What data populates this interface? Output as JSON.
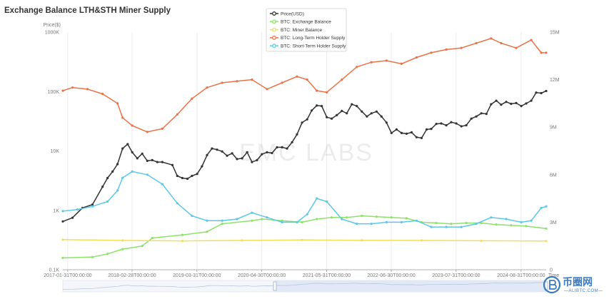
{
  "chart_data": {
    "type": "line",
    "title": "Exchange Balance LTH&STH Miner Supply",
    "left_axis_label": "Price($)",
    "right_axis_label": "",
    "left_axis": {
      "scale": "log",
      "range": [
        100,
        1000000
      ],
      "ticks": [
        "0.1K",
        "1K",
        "10K",
        "100K",
        "1000K"
      ]
    },
    "right_axis": {
      "scale": "linear",
      "range": [
        0,
        15000000
      ],
      "ticks": [
        "0",
        "3M",
        "6M",
        "9M",
        "12M",
        "15M"
      ]
    },
    "x_axis": {
      "range": [
        "2017-01-01",
        "2025-01-31"
      ],
      "tick_labels": [
        "2017-01-31T00:00:00",
        "2018-02-28T00:00:00",
        "2019-03-31T00:00:00",
        "2020-04-30T00:00:00",
        "2021-05-31T00:00:00",
        "2022-06-30T00:00:00",
        "2023-07-31T00:00:00",
        "2024-08-31T00:00:00"
      ],
      "end_label": "Time"
    },
    "grid": "vertical",
    "legend_position": "top-center",
    "watermark": "EMC LABS",
    "series": [
      {
        "name": "Price(USD)",
        "axis": "left",
        "color": "#333333",
        "points": [
          [
            "2017-01-01",
            650
          ],
          [
            "2017-03-01",
            750
          ],
          [
            "2017-05-01",
            1100
          ],
          [
            "2017-07-01",
            1250
          ],
          [
            "2017-09-01",
            2500
          ],
          [
            "2017-10-01",
            3500
          ],
          [
            "2017-11-01",
            4500
          ],
          [
            "2017-12-01",
            6000
          ],
          [
            "2018-01-01",
            11000
          ],
          [
            "2018-02-01",
            13000
          ],
          [
            "2018-03-01",
            9500
          ],
          [
            "2018-04-01",
            7500
          ],
          [
            "2018-05-01",
            9000
          ],
          [
            "2018-06-01",
            6800
          ],
          [
            "2018-07-01",
            7000
          ],
          [
            "2018-08-01",
            6500
          ],
          [
            "2018-09-01",
            6500
          ],
          [
            "2018-11-01",
            5800
          ],
          [
            "2018-12-01",
            3800
          ],
          [
            "2019-01-01",
            3500
          ],
          [
            "2019-02-01",
            3400
          ],
          [
            "2019-03-01",
            3800
          ],
          [
            "2019-04-01",
            4100
          ],
          [
            "2019-05-01",
            5500
          ],
          [
            "2019-06-01",
            8500
          ],
          [
            "2019-07-01",
            11000
          ],
          [
            "2019-08-01",
            10500
          ],
          [
            "2019-09-01",
            9800
          ],
          [
            "2019-10-01",
            8300
          ],
          [
            "2019-11-01",
            9100
          ],
          [
            "2019-12-01",
            7300
          ],
          [
            "2020-01-01",
            7500
          ],
          [
            "2020-02-01",
            9500
          ],
          [
            "2020-03-01",
            6500
          ],
          [
            "2020-04-01",
            7000
          ],
          [
            "2020-05-01",
            8800
          ],
          [
            "2020-06-01",
            9500
          ],
          [
            "2020-07-01",
            9200
          ],
          [
            "2020-08-01",
            11500
          ],
          [
            "2020-09-01",
            11500
          ],
          [
            "2020-10-01",
            11000
          ],
          [
            "2020-11-01",
            14000
          ],
          [
            "2020-12-01",
            19000
          ],
          [
            "2021-01-01",
            30000
          ],
          [
            "2021-02-01",
            34000
          ],
          [
            "2021-03-01",
            48000
          ],
          [
            "2021-04-01",
            58000
          ],
          [
            "2021-05-01",
            57000
          ],
          [
            "2021-06-01",
            37000
          ],
          [
            "2021-07-01",
            35000
          ],
          [
            "2021-08-01",
            40000
          ],
          [
            "2021-09-01",
            47000
          ],
          [
            "2021-10-01",
            43000
          ],
          [
            "2021-11-01",
            61000
          ],
          [
            "2021-12-01",
            57000
          ],
          [
            "2022-01-01",
            46000
          ],
          [
            "2022-02-01",
            38000
          ],
          [
            "2022-03-01",
            43000
          ],
          [
            "2022-04-01",
            46000
          ],
          [
            "2022-05-01",
            38000
          ],
          [
            "2022-06-01",
            30000
          ],
          [
            "2022-07-01",
            20000
          ],
          [
            "2022-08-01",
            23000
          ],
          [
            "2022-09-01",
            20000
          ],
          [
            "2022-10-01",
            19500
          ],
          [
            "2022-11-01",
            20500
          ],
          [
            "2022-12-01",
            17000
          ],
          [
            "2023-01-01",
            16500
          ],
          [
            "2023-02-01",
            23000
          ],
          [
            "2023-03-01",
            23500
          ],
          [
            "2023-04-01",
            28500
          ],
          [
            "2023-05-01",
            29000
          ],
          [
            "2023-06-01",
            27000
          ],
          [
            "2023-07-01",
            30500
          ],
          [
            "2023-08-01",
            29000
          ],
          [
            "2023-09-01",
            26000
          ],
          [
            "2023-10-01",
            27000
          ],
          [
            "2023-11-01",
            35000
          ],
          [
            "2023-12-01",
            38000
          ],
          [
            "2024-01-01",
            43000
          ],
          [
            "2024-02-01",
            42000
          ],
          [
            "2024-03-01",
            61000
          ],
          [
            "2024-04-01",
            70000
          ],
          [
            "2024-05-01",
            60000
          ],
          [
            "2024-06-01",
            67000
          ],
          [
            "2024-07-01",
            62000
          ],
          [
            "2024-08-01",
            64000
          ],
          [
            "2024-09-01",
            57000
          ],
          [
            "2024-10-01",
            63000
          ],
          [
            "2024-11-01",
            70000
          ],
          [
            "2024-12-01",
            96000
          ],
          [
            "2025-01-01",
            94000
          ],
          [
            "2025-01-31",
            102000
          ]
        ]
      },
      {
        "name": "BTC: Exchange Balance",
        "axis": "right",
        "color": "#8ee26b",
        "points": [
          [
            "2017-01-01",
            750000
          ],
          [
            "2017-07-01",
            800000
          ],
          [
            "2017-10-01",
            1000000
          ],
          [
            "2018-01-01",
            1300000
          ],
          [
            "2018-05-01",
            1500000
          ],
          [
            "2018-07-01",
            2000000
          ],
          [
            "2019-01-01",
            2200000
          ],
          [
            "2019-06-01",
            2400000
          ],
          [
            "2019-09-01",
            2900000
          ],
          [
            "2020-03-01",
            3100000
          ],
          [
            "2020-05-01",
            3200000
          ],
          [
            "2020-09-01",
            3100000
          ],
          [
            "2021-01-01",
            3000000
          ],
          [
            "2021-04-01",
            3200000
          ],
          [
            "2021-07-01",
            3300000
          ],
          [
            "2021-10-01",
            3300000
          ],
          [
            "2022-01-01",
            3400000
          ],
          [
            "2022-04-01",
            3350000
          ],
          [
            "2022-07-01",
            3300000
          ],
          [
            "2022-10-01",
            3250000
          ],
          [
            "2023-01-01",
            3000000
          ],
          [
            "2023-04-01",
            2950000
          ],
          [
            "2023-07-01",
            2900000
          ],
          [
            "2023-10-01",
            2950000
          ],
          [
            "2024-01-01",
            2950000
          ],
          [
            "2024-04-01",
            2850000
          ],
          [
            "2024-07-01",
            2800000
          ],
          [
            "2024-10-01",
            2750000
          ],
          [
            "2025-01-31",
            2600000
          ]
        ]
      },
      {
        "name": "BTC: Miner Balance",
        "axis": "right",
        "color": "#f3dd5a",
        "points": [
          [
            "2017-01-01",
            1900000
          ],
          [
            "2018-01-01",
            1850000
          ],
          [
            "2019-01-01",
            1820000
          ],
          [
            "2020-01-01",
            1850000
          ],
          [
            "2021-01-01",
            1880000
          ],
          [
            "2022-01-01",
            1860000
          ],
          [
            "2023-01-01",
            1850000
          ],
          [
            "2024-01-01",
            1830000
          ],
          [
            "2025-01-31",
            1810000
          ]
        ]
      },
      {
        "name": "BTC: Long-Term Holder Supply",
        "axis": "right",
        "color": "#e8734b",
        "points": [
          [
            "2017-01-01",
            11300000
          ],
          [
            "2017-03-01",
            11500000
          ],
          [
            "2017-06-01",
            11400000
          ],
          [
            "2017-09-01",
            11100000
          ],
          [
            "2017-12-01",
            10500000
          ],
          [
            "2018-01-01",
            9600000
          ],
          [
            "2018-03-01",
            9100000
          ],
          [
            "2018-06-01",
            8700000
          ],
          [
            "2018-09-01",
            8900000
          ],
          [
            "2018-12-01",
            9800000
          ],
          [
            "2019-03-01",
            10800000
          ],
          [
            "2019-06-01",
            11500000
          ],
          [
            "2019-09-01",
            11800000
          ],
          [
            "2019-12-01",
            11900000
          ],
          [
            "2020-03-01",
            12000000
          ],
          [
            "2020-06-01",
            11400000
          ],
          [
            "2020-09-01",
            11800000
          ],
          [
            "2020-12-01",
            12200000
          ],
          [
            "2021-02-01",
            12000000
          ],
          [
            "2021-04-01",
            11300000
          ],
          [
            "2021-06-01",
            11200000
          ],
          [
            "2021-09-01",
            12000000
          ],
          [
            "2021-12-01",
            12800000
          ],
          [
            "2022-03-01",
            13100000
          ],
          [
            "2022-06-01",
            13200000
          ],
          [
            "2022-09-01",
            13000000
          ],
          [
            "2022-12-01",
            13400000
          ],
          [
            "2023-03-01",
            13700000
          ],
          [
            "2023-06-01",
            13900000
          ],
          [
            "2023-09-01",
            14000000
          ],
          [
            "2023-12-01",
            14300000
          ],
          [
            "2024-03-01",
            14600000
          ],
          [
            "2024-05-01",
            14300000
          ],
          [
            "2024-08-01",
            14000000
          ],
          [
            "2024-11-01",
            14500000
          ],
          [
            "2025-01-01",
            13700000
          ],
          [
            "2025-01-31",
            13700000
          ]
        ]
      },
      {
        "name": "BTC: Short-Term Holder Supply",
        "axis": "right",
        "color": "#5cc8e8",
        "points": [
          [
            "2017-01-01",
            3700000
          ],
          [
            "2017-04-01",
            3800000
          ],
          [
            "2017-07-01",
            4000000
          ],
          [
            "2017-10-01",
            4300000
          ],
          [
            "2017-12-01",
            5000000
          ],
          [
            "2018-01-01",
            5800000
          ],
          [
            "2018-03-01",
            6200000
          ],
          [
            "2018-06-01",
            6000000
          ],
          [
            "2018-09-01",
            5400000
          ],
          [
            "2018-12-01",
            4200000
          ],
          [
            "2019-03-01",
            3400000
          ],
          [
            "2019-06-01",
            3100000
          ],
          [
            "2019-09-01",
            3100000
          ],
          [
            "2019-12-01",
            3200000
          ],
          [
            "2020-03-01",
            3600000
          ],
          [
            "2020-06-01",
            3300000
          ],
          [
            "2020-09-01",
            3000000
          ],
          [
            "2020-12-01",
            3000000
          ],
          [
            "2021-02-01",
            3500000
          ],
          [
            "2021-04-01",
            4500000
          ],
          [
            "2021-06-01",
            4300000
          ],
          [
            "2021-09-01",
            3200000
          ],
          [
            "2021-12-01",
            2900000
          ],
          [
            "2022-03-01",
            2900000
          ],
          [
            "2022-06-01",
            3000000
          ],
          [
            "2022-09-01",
            3000000
          ],
          [
            "2022-12-01",
            3100000
          ],
          [
            "2023-03-01",
            2700000
          ],
          [
            "2023-06-01",
            2700000
          ],
          [
            "2023-09-01",
            2700000
          ],
          [
            "2023-12-01",
            2900000
          ],
          [
            "2024-03-01",
            3300000
          ],
          [
            "2024-06-01",
            3200000
          ],
          [
            "2024-09-01",
            3000000
          ],
          [
            "2024-11-01",
            3100000
          ],
          [
            "2025-01-01",
            3900000
          ],
          [
            "2025-01-31",
            4000000
          ]
        ]
      }
    ]
  }
}
